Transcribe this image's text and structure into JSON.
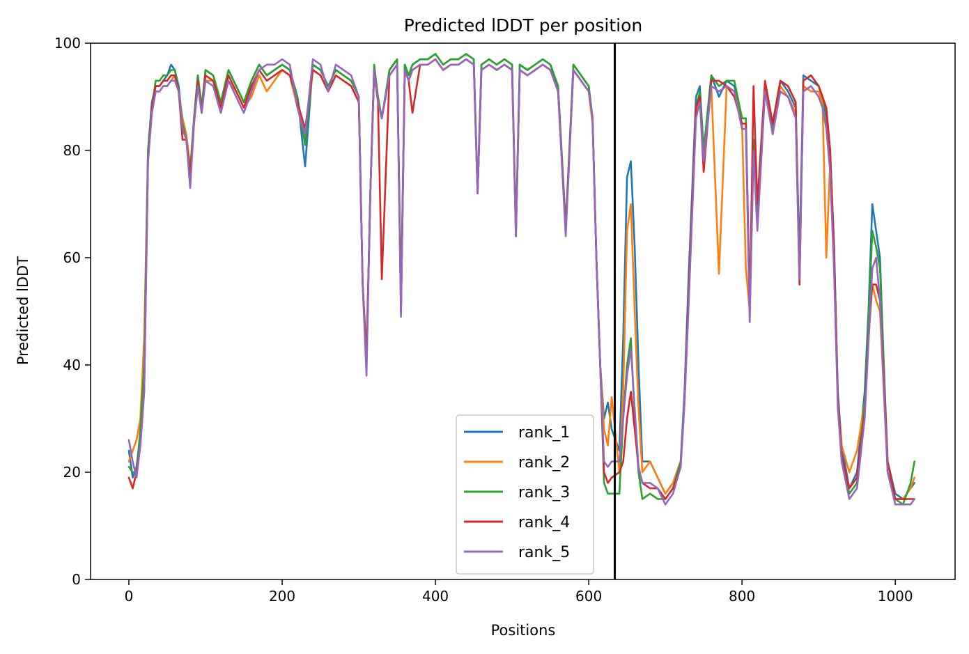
{
  "chart_data": {
    "type": "line",
    "title": "Predicted lDDT per position",
    "xlabel": "Positions",
    "ylabel": "Predicted lDDT",
    "xlim": [
      -50,
      1078
    ],
    "ylim": [
      0,
      100
    ],
    "xticks": [
      0,
      200,
      400,
      600,
      800,
      1000
    ],
    "yticks": [
      0,
      20,
      40,
      60,
      80,
      100
    ],
    "grid": false,
    "legend_position": "lower-center",
    "chain_break_x": 634,
    "chain_break_color": "#000000",
    "x": [
      0,
      5,
      10,
      15,
      20,
      25,
      30,
      35,
      40,
      45,
      50,
      55,
      60,
      65,
      70,
      75,
      80,
      85,
      90,
      95,
      100,
      110,
      120,
      130,
      140,
      150,
      160,
      170,
      180,
      190,
      200,
      210,
      220,
      230,
      240,
      250,
      260,
      270,
      280,
      290,
      300,
      305,
      310,
      315,
      320,
      325,
      330,
      340,
      350,
      355,
      360,
      365,
      370,
      380,
      390,
      400,
      410,
      420,
      430,
      440,
      450,
      455,
      460,
      470,
      480,
      490,
      500,
      505,
      510,
      520,
      530,
      540,
      550,
      560,
      570,
      580,
      590,
      600,
      605,
      610,
      615,
      620,
      625,
      630,
      640,
      645,
      650,
      655,
      660,
      665,
      670,
      680,
      690,
      700,
      710,
      720,
      725,
      730,
      740,
      745,
      750,
      760,
      770,
      780,
      790,
      800,
      805,
      810,
      815,
      820,
      830,
      840,
      850,
      860,
      870,
      875,
      880,
      890,
      900,
      905,
      910,
      915,
      920,
      925,
      930,
      940,
      950,
      960,
      965,
      970,
      975,
      980,
      985,
      990,
      1000,
      1010,
      1020,
      1025
    ],
    "series": [
      {
        "name": "rank_1",
        "color": "#1f77b4",
        "values": [
          24,
          19,
          21,
          27,
          40,
          80,
          89,
          92,
          92,
          93,
          94,
          96,
          95,
          92,
          85,
          82,
          76,
          86,
          94,
          88,
          95,
          94,
          89,
          95,
          92,
          89,
          93,
          96,
          94,
          95,
          96,
          95,
          90,
          77,
          96,
          95,
          92,
          95,
          94,
          93,
          90,
          55,
          40,
          72,
          95,
          90,
          86,
          95,
          97,
          50,
          96,
          94,
          96,
          97,
          97,
          98,
          96,
          97,
          97,
          98,
          97,
          72,
          96,
          97,
          96,
          97,
          96,
          64,
          96,
          95,
          96,
          97,
          96,
          92,
          65,
          96,
          94,
          92,
          86,
          60,
          40,
          30,
          33,
          28,
          24,
          45,
          75,
          78,
          62,
          40,
          22,
          22,
          19,
          16,
          18,
          22,
          35,
          55,
          90,
          92,
          80,
          94,
          90,
          93,
          92,
          86,
          86,
          52,
          82,
          66,
          92,
          85,
          93,
          91,
          88,
          60,
          94,
          93,
          92,
          90,
          86,
          79,
          63,
          35,
          25,
          17,
          20,
          35,
          50,
          70,
          65,
          60,
          40,
          22,
          16,
          15,
          17,
          18
        ]
      },
      {
        "name": "rank_2",
        "color": "#ff7f0e",
        "values": [
          22,
          24,
          26,
          30,
          45,
          80,
          87,
          91,
          91,
          92,
          92,
          93,
          94,
          91,
          86,
          83,
          77,
          85,
          92,
          88,
          93,
          93,
          88,
          93,
          91,
          88,
          90,
          94,
          91,
          93,
          95,
          94,
          88,
          82,
          95,
          94,
          91,
          94,
          93,
          92,
          89,
          55,
          41,
          72,
          94,
          89,
          86,
          94,
          96,
          52,
          95,
          93,
          95,
          96,
          96,
          97,
          95,
          96,
          96,
          97,
          96,
          72,
          95,
          96,
          95,
          96,
          95,
          65,
          95,
          94,
          95,
          96,
          95,
          91,
          66,
          95,
          93,
          91,
          85,
          60,
          40,
          28,
          25,
          34,
          20,
          35,
          65,
          70,
          50,
          32,
          20,
          22,
          19,
          16,
          18,
          22,
          33,
          50,
          87,
          90,
          78,
          92,
          57,
          92,
          91,
          85,
          58,
          50,
          80,
          66,
          92,
          84,
          92,
          90,
          87,
          55,
          92,
          91,
          91,
          89,
          60,
          78,
          60,
          33,
          25,
          20,
          24,
          33,
          45,
          55,
          52,
          50,
          35,
          20,
          15,
          15,
          17,
          19
        ]
      },
      {
        "name": "rank_3",
        "color": "#2ca02c",
        "values": [
          21,
          20,
          20,
          28,
          40,
          80,
          88,
          93,
          93,
          94,
          94,
          95,
          95,
          91,
          85,
          82,
          76,
          86,
          94,
          88,
          95,
          94,
          89,
          95,
          92,
          89,
          93,
          96,
          94,
          95,
          96,
          95,
          90,
          81,
          96,
          95,
          92,
          95,
          94,
          93,
          90,
          55,
          41,
          72,
          96,
          90,
          86,
          95,
          97,
          52,
          96,
          94,
          96,
          97,
          97,
          98,
          96,
          97,
          97,
          98,
          97,
          72,
          96,
          97,
          96,
          97,
          96,
          65,
          96,
          95,
          96,
          97,
          96,
          92,
          66,
          96,
          94,
          92,
          86,
          60,
          40,
          18,
          16,
          16,
          16,
          30,
          40,
          45,
          30,
          20,
          15,
          16,
          15,
          15,
          17,
          22,
          34,
          52,
          88,
          91,
          80,
          94,
          92,
          93,
          93,
          86,
          86,
          50,
          82,
          66,
          92,
          84,
          93,
          92,
          89,
          57,
          93,
          94,
          92,
          90,
          87,
          80,
          62,
          34,
          23,
          16,
          18,
          33,
          48,
          65,
          62,
          58,
          40,
          20,
          15,
          14,
          18,
          22
        ]
      },
      {
        "name": "rank_4",
        "color": "#d62728",
        "values": [
          19,
          17,
          20,
          25,
          35,
          78,
          88,
          92,
          92,
          93,
          93,
          94,
          94,
          91,
          82,
          82,
          75,
          85,
          93,
          87,
          94,
          93,
          88,
          94,
          91,
          88,
          92,
          95,
          93,
          94,
          95,
          94,
          89,
          84,
          95,
          94,
          91,
          94,
          93,
          92,
          89,
          55,
          42,
          72,
          95,
          89,
          56,
          94,
          96,
          50,
          95,
          93,
          87,
          96,
          96,
          97,
          95,
          96,
          96,
          97,
          96,
          72,
          95,
          96,
          95,
          96,
          95,
          64,
          95,
          94,
          95,
          96,
          95,
          91,
          65,
          95,
          93,
          91,
          86,
          60,
          40,
          20,
          18,
          19,
          20,
          22,
          30,
          35,
          28,
          21,
          18,
          17,
          17,
          15,
          17,
          21,
          33,
          52,
          88,
          90,
          76,
          93,
          93,
          92,
          90,
          85,
          85,
          50,
          92,
          70,
          93,
          85,
          93,
          92,
          89,
          55,
          93,
          94,
          92,
          90,
          88,
          80,
          62,
          34,
          23,
          17,
          19,
          31,
          45,
          55,
          55,
          52,
          38,
          22,
          15,
          15,
          15,
          15
        ]
      },
      {
        "name": "rank_5",
        "color": "#9467bd",
        "values": [
          26,
          22,
          19,
          25,
          35,
          78,
          87,
          91,
          91,
          92,
          92,
          93,
          93,
          91,
          84,
          82,
          73,
          85,
          92,
          87,
          93,
          92,
          87,
          93,
          90,
          87,
          91,
          95,
          96,
          96,
          97,
          96,
          88,
          83,
          97,
          96,
          91,
          96,
          95,
          94,
          90,
          55,
          38,
          72,
          95,
          89,
          86,
          94,
          96,
          49,
          95,
          93,
          95,
          96,
          96,
          97,
          95,
          96,
          96,
          97,
          96,
          72,
          95,
          96,
          95,
          96,
          95,
          64,
          95,
          94,
          95,
          96,
          95,
          91,
          64,
          95,
          93,
          91,
          86,
          60,
          40,
          22,
          21,
          22,
          22,
          30,
          38,
          43,
          32,
          21,
          18,
          18,
          17,
          14,
          16,
          21,
          33,
          50,
          86,
          89,
          78,
          92,
          91,
          92,
          91,
          84,
          84,
          48,
          80,
          65,
          91,
          83,
          91,
          90,
          86,
          56,
          91,
          92,
          90,
          88,
          84,
          76,
          58,
          32,
          22,
          15,
          17,
          30,
          44,
          58,
          60,
          52,
          36,
          20,
          14,
          14,
          14,
          15
        ]
      }
    ]
  }
}
